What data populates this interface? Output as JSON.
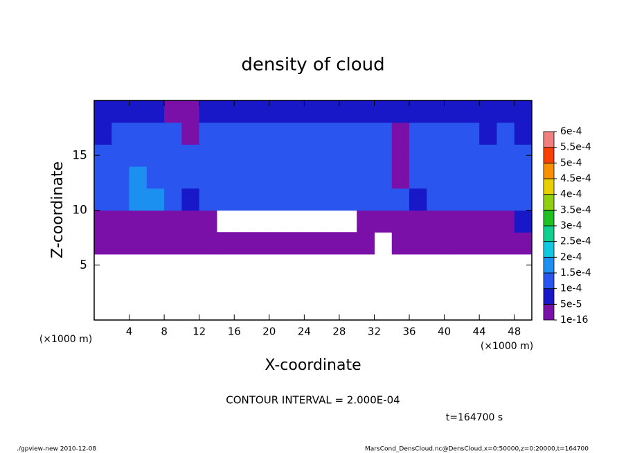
{
  "chart_data": {
    "type": "heatmap",
    "title": "density of cloud",
    "x_label": "X-coordinate",
    "y_label": "Z-coordinate",
    "x_unit": "(×1000 m)",
    "y_unit": "(×1000 m)",
    "xlim": [
      0,
      50
    ],
    "xticks": [
      4,
      8,
      12,
      16,
      20,
      24,
      28,
      32,
      36,
      40,
      44,
      48
    ],
    "ylim": [
      0,
      20
    ],
    "yticks": [
      5,
      10,
      15
    ],
    "x_bins": [
      0,
      2,
      4,
      6,
      8,
      10,
      12,
      14,
      16,
      18,
      20,
      22,
      24,
      26,
      28,
      30,
      32,
      34,
      36,
      38,
      40,
      42,
      44,
      46,
      48,
      50
    ],
    "y_bins": [
      0,
      2,
      4,
      6,
      8,
      10,
      12,
      14,
      16,
      18,
      20
    ],
    "z": [
      [
        null,
        null,
        null,
        null,
        null,
        null,
        null,
        null,
        null,
        null,
        null,
        null,
        null,
        null,
        null,
        null,
        null,
        null,
        null,
        null,
        null,
        null,
        null,
        null,
        null
      ],
      [
        null,
        null,
        null,
        null,
        null,
        null,
        null,
        null,
        null,
        null,
        null,
        null,
        null,
        null,
        null,
        null,
        null,
        null,
        null,
        null,
        null,
        null,
        null,
        null,
        null
      ],
      [
        null,
        null,
        null,
        null,
        null,
        null,
        null,
        null,
        null,
        null,
        null,
        null,
        null,
        null,
        null,
        null,
        null,
        null,
        null,
        null,
        null,
        null,
        null,
        null,
        null
      ],
      [
        1e-05,
        1e-05,
        1e-05,
        1e-05,
        1e-05,
        1e-05,
        1e-05,
        1e-05,
        1e-05,
        1e-05,
        1e-05,
        1e-05,
        1e-05,
        1e-05,
        1e-05,
        1e-05,
        null,
        1e-05,
        1e-05,
        1e-05,
        1e-05,
        1e-05,
        1e-05,
        1e-05,
        1e-05
      ],
      [
        1e-05,
        1e-05,
        1e-05,
        1e-05,
        1e-05,
        1e-05,
        1e-05,
        null,
        null,
        null,
        null,
        null,
        null,
        null,
        null,
        1e-05,
        1e-05,
        1e-05,
        1e-05,
        1e-05,
        1e-05,
        1e-05,
        1e-05,
        1e-05,
        7e-05
      ],
      [
        0.00012,
        0.00012,
        0.00016,
        0.00016,
        0.00012,
        7e-05,
        0.00012,
        0.00012,
        0.00012,
        0.00012,
        0.00012,
        0.00012,
        0.00012,
        0.00012,
        0.00012,
        0.00012,
        0.00012,
        0.00012,
        7e-05,
        0.00012,
        0.00012,
        0.00012,
        0.00012,
        0.00012,
        0.00012
      ],
      [
        0.00012,
        0.00012,
        0.00016,
        0.00012,
        0.00012,
        0.00012,
        0.00012,
        0.00012,
        0.00012,
        0.00012,
        0.00012,
        0.00012,
        0.00012,
        0.00012,
        0.00012,
        0.00012,
        0.00012,
        1e-05,
        0.00012,
        0.00012,
        0.00012,
        0.00012,
        0.00012,
        0.00012,
        0.00012
      ],
      [
        0.00012,
        0.00012,
        0.00012,
        0.00012,
        0.00012,
        0.00012,
        0.00012,
        0.00012,
        0.00012,
        0.00012,
        0.00012,
        0.00012,
        0.00012,
        0.00012,
        0.00012,
        0.00012,
        0.00012,
        1e-05,
        0.00012,
        0.00012,
        0.00012,
        0.00012,
        0.00012,
        0.00012,
        0.00012
      ],
      [
        7e-05,
        0.00012,
        0.00012,
        0.00012,
        0.00012,
        1e-05,
        0.00012,
        0.00012,
        0.00012,
        0.00012,
        0.00012,
        0.00012,
        0.00012,
        0.00012,
        0.00012,
        0.00012,
        0.00012,
        1e-05,
        0.00012,
        0.00012,
        0.00012,
        0.00012,
        7e-05,
        0.00012,
        7e-05
      ],
      [
        7e-05,
        7e-05,
        7e-05,
        7e-05,
        1e-05,
        1e-05,
        7e-05,
        7e-05,
        7e-05,
        7e-05,
        7e-05,
        7e-05,
        7e-05,
        7e-05,
        7e-05,
        7e-05,
        7e-05,
        7e-05,
        7e-05,
        7e-05,
        7e-05,
        7e-05,
        7e-05,
        7e-05,
        7e-05
      ]
    ],
    "levels": [
      {
        "value": 1e-16,
        "label": "1e-16"
      },
      {
        "value": 5e-05,
        "label": "5e-5"
      },
      {
        "value": 0.0001,
        "label": "1e-4"
      },
      {
        "value": 0.00015,
        "label": "1.5e-4"
      },
      {
        "value": 0.0002,
        "label": "2e-4"
      },
      {
        "value": 0.00025,
        "label": "2.5e-4"
      },
      {
        "value": 0.0003,
        "label": "3e-4"
      },
      {
        "value": 0.00035,
        "label": "3.5e-4"
      },
      {
        "value": 0.0004,
        "label": "4e-4"
      },
      {
        "value": 0.00045,
        "label": "4.5e-4"
      },
      {
        "value": 0.0005,
        "label": "5e-4"
      },
      {
        "value": 0.00055,
        "label": "5.5e-4"
      },
      {
        "value": 0.0006,
        "label": "6e-4"
      }
    ],
    "colors": [
      "#7a10a8",
      "#1818c8",
      "#2a55ee",
      "#1c90f0",
      "#10c8e0",
      "#10d090",
      "#20c020",
      "#90d010",
      "#e8d000",
      "#f89000",
      "#f84000",
      "#f08080"
    ],
    "contour_interval": "CONTOUR INTERVAL = 2.000E-04",
    "time": "t=164700 s",
    "footer_left": "./gpview-new  2010-12-08",
    "footer_right": "MarsCond_DensCloud.nc@DensCloud,x=0:50000,z=0:20000,t=164700"
  }
}
